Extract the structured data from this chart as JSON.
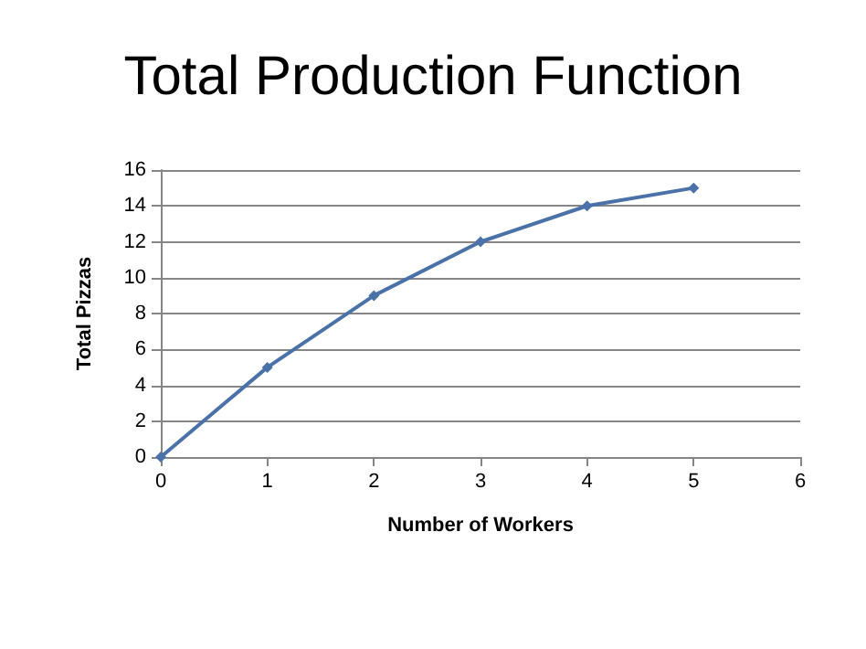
{
  "chart_data": {
    "type": "line",
    "title": "Total Production Function",
    "xlabel": "Number of Workers",
    "ylabel": "Total Pizzas",
    "x": [
      0,
      1,
      2,
      3,
      4,
      5
    ],
    "series": [
      {
        "color": "#4a72a8",
        "values": [
          0,
          5,
          9,
          12,
          14,
          15
        ]
      }
    ],
    "xlim": [
      0,
      6
    ],
    "xticks": [
      0,
      1,
      2,
      3,
      4,
      5,
      6
    ],
    "ylim": [
      0,
      16
    ],
    "yticks": [
      0,
      2,
      4,
      6,
      8,
      10,
      12,
      14,
      16
    ],
    "grid": "y",
    "marker": "diamond",
    "line_style": "solid"
  }
}
